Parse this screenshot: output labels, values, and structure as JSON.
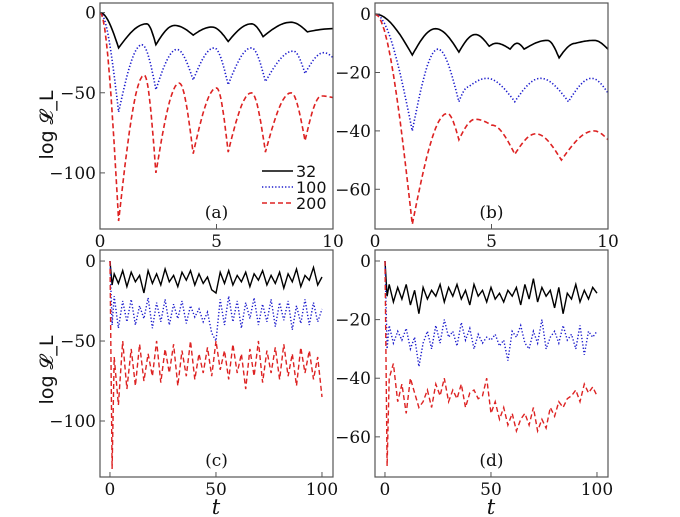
{
  "chart_data": [
    {
      "type": "line",
      "panel_label": "(a)",
      "xlabel": "",
      "ylabel": "log 𝓛_L",
      "xlim": [
        0,
        10
      ],
      "ylim": [
        -135,
        6
      ],
      "xticks": [
        0,
        5,
        10
      ],
      "yticks": [
        0,
        -50,
        -100
      ],
      "legend": {
        "placement": "bottom-right",
        "entries": [
          "32",
          "100",
          "200"
        ]
      },
      "series": [
        {
          "name": "32",
          "color": "#000000",
          "style": "solid",
          "x": [
            0,
            0.8,
            2.0,
            2.4,
            3.2,
            4.0,
            4.8,
            5.5,
            6.5,
            7.0,
            8.2,
            8.9,
            10
          ],
          "y": [
            0,
            -22,
            -7,
            -20,
            -8,
            -14,
            -9,
            -18,
            -7,
            -15,
            -6,
            -12,
            -10
          ]
        },
        {
          "name": "100",
          "color": "#1a1acc",
          "style": "dotted",
          "x": [
            0,
            0.8,
            1.8,
            2.4,
            3.3,
            4.0,
            4.9,
            5.5,
            6.5,
            7.1,
            8.3,
            8.8,
            9.6,
            10
          ],
          "y": [
            0,
            -62,
            -20,
            -48,
            -23,
            -42,
            -22,
            -45,
            -22,
            -43,
            -24,
            -38,
            -25,
            -28
          ]
        },
        {
          "name": "200",
          "color": "#dd2222",
          "style": "dashed",
          "x": [
            0,
            0.8,
            1.9,
            2.4,
            3.4,
            4.0,
            5.0,
            5.5,
            6.5,
            7.1,
            8.2,
            8.8,
            9.5,
            10
          ],
          "y": [
            0,
            -130,
            -39,
            -100,
            -44,
            -88,
            -47,
            -87,
            -50,
            -87,
            -50,
            -80,
            -52,
            -53
          ]
        }
      ]
    },
    {
      "type": "line",
      "panel_label": "(b)",
      "xlabel": "",
      "ylabel": "",
      "xlim": [
        0,
        10
      ],
      "ylim": [
        -73.6,
        3.8
      ],
      "xticks": [
        0,
        5,
        10
      ],
      "yticks": [
        0,
        -20,
        -40,
        -60
      ],
      "series": [
        {
          "name": "32",
          "color": "#000000",
          "style": "solid",
          "x": [
            0,
            1.6,
            2.6,
            3.6,
            4.3,
            4.9,
            5.2,
            5.8,
            6.1,
            6.4,
            7.4,
            7.9,
            8.6,
            9.4,
            10
          ],
          "y": [
            0,
            -14,
            -5,
            -13,
            -7,
            -11,
            -10,
            -12,
            -10,
            -12,
            -9,
            -15,
            -10,
            -9,
            -12
          ]
        },
        {
          "name": "100",
          "color": "#1a1acc",
          "style": "dotted",
          "x": [
            0,
            1.6,
            2.7,
            3.6,
            4.0,
            4.8,
            6.0,
            7.1,
            8.3,
            9.3,
            10
          ],
          "y": [
            0,
            -40,
            -12,
            -30,
            -25,
            -22,
            -30,
            -22,
            -30,
            -22,
            -27
          ]
        },
        {
          "name": "200",
          "color": "#dd2222",
          "style": "dashed",
          "x": [
            0,
            1.6,
            3.1,
            3.6,
            4.3,
            5.0,
            6.0,
            6.9,
            8.0,
            9.4,
            10
          ],
          "y": [
            0,
            -72,
            -34,
            -43,
            -36,
            -38,
            -48,
            -41,
            -50,
            -40,
            -43
          ]
        }
      ]
    },
    {
      "type": "line",
      "panel_label": "(c)",
      "xlabel": "t",
      "ylabel": "log 𝓛_L",
      "xlim": [
        -4.7,
        105.2
      ],
      "ylim": [
        -135,
        6.9
      ],
      "xticks": [
        0,
        50,
        100
      ],
      "yticks": [
        0,
        -50,
        -100
      ],
      "x": [
        0,
        1,
        2,
        4,
        6,
        8,
        10,
        12,
        14,
        16,
        18,
        20,
        22,
        24,
        26,
        28,
        30,
        32,
        34,
        36,
        38,
        40,
        42,
        44,
        46,
        48,
        50,
        52,
        54,
        56,
        58,
        60,
        62,
        64,
        66,
        68,
        70,
        72,
        74,
        76,
        78,
        80,
        82,
        84,
        86,
        88,
        90,
        92,
        94,
        96,
        98,
        100
      ],
      "series": [
        {
          "name": "32",
          "color": "#000000",
          "style": "solid",
          "y": [
            0,
            -15,
            -8,
            -14,
            -6,
            -16,
            -7,
            -13,
            -9,
            -20,
            -6,
            -14,
            -8,
            -15,
            -5,
            -13,
            -9,
            -16,
            -7,
            -12,
            -6,
            -15,
            -8,
            -14,
            -10,
            -18,
            -20,
            -7,
            -14,
            -6,
            -15,
            -9,
            -13,
            -7,
            -16,
            -8,
            -12,
            -6,
            -15,
            -9,
            -14,
            -7,
            -17,
            -8,
            -13,
            -5,
            -16,
            -9,
            -12,
            -4,
            -15,
            -10
          ]
        },
        {
          "name": "100",
          "color": "#1a1acc",
          "style": "dotted",
          "y": [
            0,
            -40,
            -22,
            -42,
            -25,
            -38,
            -24,
            -40,
            -28,
            -36,
            -23,
            -42,
            -26,
            -38,
            -24,
            -40,
            -27,
            -36,
            -25,
            -39,
            -28,
            -35,
            -30,
            -38,
            -32,
            -45,
            -50,
            -24,
            -40,
            -22,
            -38,
            -25,
            -42,
            -26,
            -36,
            -23,
            -40,
            -27,
            -38,
            -24,
            -41,
            -26,
            -37,
            -25,
            -43,
            -28,
            -39,
            -24,
            -40,
            -26,
            -38,
            -30
          ]
        },
        {
          "name": "200",
          "color": "#dd2222",
          "style": "dashed",
          "y": [
            0,
            -130,
            -60,
            -90,
            -50,
            -80,
            -55,
            -78,
            -52,
            -75,
            -58,
            -72,
            -50,
            -76,
            -55,
            -70,
            -52,
            -78,
            -56,
            -72,
            -50,
            -74,
            -58,
            -70,
            -54,
            -72,
            -50,
            -68,
            -56,
            -74,
            -52,
            -70,
            -58,
            -80,
            -55,
            -72,
            -50,
            -76,
            -56,
            -70,
            -54,
            -74,
            -52,
            -72,
            -58,
            -78,
            -54,
            -70,
            -56,
            -74,
            -60,
            -85
          ]
        }
      ]
    },
    {
      "type": "line",
      "panel_label": "(d)",
      "xlabel": "t",
      "ylabel": "",
      "xlim": [
        -4.7,
        105.2
      ],
      "ylim": [
        -73.7,
        3.75
      ],
      "xticks": [
        0,
        50,
        100
      ],
      "yticks": [
        0,
        -20,
        -40,
        -60
      ],
      "x": [
        0,
        1,
        2,
        4,
        6,
        8,
        10,
        12,
        14,
        16,
        18,
        20,
        22,
        24,
        26,
        28,
        30,
        32,
        34,
        36,
        38,
        40,
        42,
        44,
        46,
        48,
        50,
        52,
        54,
        56,
        58,
        60,
        62,
        64,
        66,
        68,
        70,
        72,
        74,
        76,
        78,
        80,
        82,
        84,
        86,
        88,
        90,
        92,
        94,
        96,
        98,
        100
      ],
      "series": [
        {
          "name": "32",
          "color": "#000000",
          "style": "solid",
          "y": [
            0,
            -12,
            -8,
            -14,
            -9,
            -13,
            -8,
            -15,
            -10,
            -18,
            -9,
            -13,
            -10,
            -12,
            -8,
            -14,
            -9,
            -12,
            -8,
            -13,
            -10,
            -15,
            -8,
            -12,
            -10,
            -14,
            -9,
            -13,
            -11,
            -14,
            -10,
            -12,
            -9,
            -15,
            -8,
            -13,
            -6,
            -14,
            -9,
            -12,
            -10,
            -16,
            -9,
            -18,
            -11,
            -13,
            -8,
            -14,
            -10,
            -13,
            -9,
            -11
          ]
        },
        {
          "name": "100",
          "color": "#1a1acc",
          "style": "dotted",
          "y": [
            0,
            -30,
            -22,
            -28,
            -24,
            -27,
            -23,
            -30,
            -26,
            -36,
            -28,
            -24,
            -30,
            -22,
            -28,
            -20,
            -26,
            -24,
            -29,
            -21,
            -27,
            -23,
            -30,
            -25,
            -28,
            -26,
            -27,
            -25,
            -29,
            -27,
            -34,
            -24,
            -26,
            -22,
            -28,
            -30,
            -24,
            -28,
            -20,
            -30,
            -26,
            -24,
            -28,
            -22,
            -27,
            -25,
            -30,
            -22,
            -32,
            -24,
            -26,
            -24
          ]
        },
        {
          "name": "200",
          "color": "#dd2222",
          "style": "dashed",
          "y": [
            0,
            -70,
            -40,
            -35,
            -48,
            -42,
            -52,
            -40,
            -45,
            -50,
            -48,
            -44,
            -50,
            -42,
            -46,
            -40,
            -48,
            -44,
            -47,
            -42,
            -50,
            -45,
            -44,
            -47,
            -46,
            -40,
            -52,
            -48,
            -54,
            -50,
            -56,
            -52,
            -58,
            -54,
            -52,
            -56,
            -50,
            -58,
            -54,
            -57,
            -50,
            -53,
            -48,
            -50,
            -47,
            -46,
            -44,
            -48,
            -42,
            -45,
            -43,
            -46
          ]
        }
      ]
    }
  ]
}
